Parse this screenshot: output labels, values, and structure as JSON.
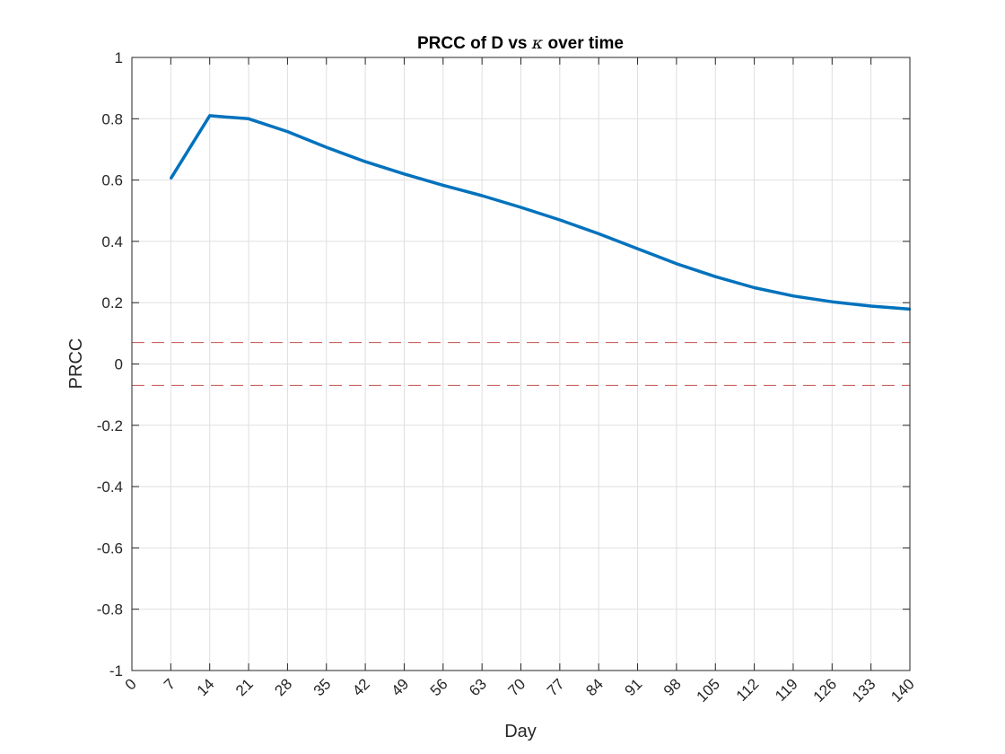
{
  "chart_data": {
    "type": "line",
    "title_prefix": "PRCC of D vs ",
    "title_symbol": "κ",
    "title_suffix": " over time",
    "xlabel": "Day",
    "ylabel": "PRCC",
    "xlim": [
      0,
      140
    ],
    "ylim": [
      -1,
      1
    ],
    "xticks": [
      0,
      7,
      14,
      21,
      28,
      35,
      42,
      49,
      56,
      63,
      70,
      77,
      84,
      91,
      98,
      105,
      112,
      119,
      126,
      133,
      140
    ],
    "yticks": [
      -1,
      -0.8,
      -0.6,
      -0.4,
      -0.2,
      0,
      0.2,
      0.4,
      0.6,
      0.8,
      1
    ],
    "ytick_labels": [
      "-1",
      "-0.8",
      "-0.6",
      "-0.4",
      "-0.2",
      "0",
      "0.2",
      "0.4",
      "0.6",
      "0.8",
      "1"
    ],
    "grid": true,
    "series": [
      {
        "color": "#0072BD",
        "x": [
          7,
          14,
          21,
          28,
          35,
          42,
          49,
          56,
          63,
          70,
          77,
          84,
          91,
          98,
          105,
          112,
          119,
          126,
          133,
          140
        ],
        "y": [
          0.605,
          0.81,
          0.8,
          0.758,
          0.707,
          0.66,
          0.62,
          0.583,
          0.549,
          0.511,
          0.47,
          0.425,
          0.376,
          0.327,
          0.285,
          0.249,
          0.222,
          0.203,
          0.189,
          0.179
        ]
      }
    ],
    "reference_lines": [
      {
        "y": 0.07,
        "color": "#C0504D",
        "style": "dashed"
      },
      {
        "y": -0.07,
        "color": "#C0504D",
        "style": "dashed"
      }
    ]
  }
}
